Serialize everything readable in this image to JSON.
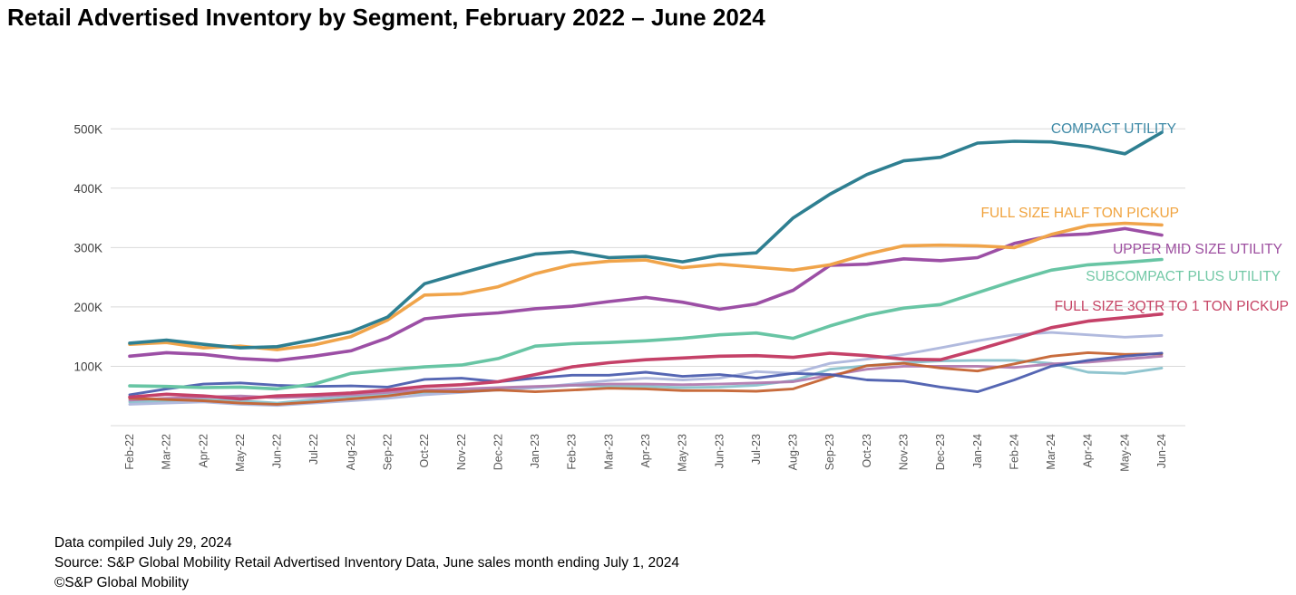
{
  "title": "Retail Advertised Inventory by Segment, February 2022 – June 2024",
  "footer": {
    "compiled": "Data compiled July 29, 2024",
    "source": "Source: S&P Global Mobility Retail Advertised Inventory Data, June sales month ending July 1, 2024",
    "copyright": "©S&P Global Mobility"
  },
  "chart_data": {
    "type": "line",
    "title": "Retail Advertised Inventory by Segment, February 2022 – June 2024",
    "x": [
      "Feb-22",
      "Mar-22",
      "Apr-22",
      "May-22",
      "Jun-22",
      "Jul-22",
      "Aug-22",
      "Sep-22",
      "Oct-22",
      "Nov-22",
      "Dec-22",
      "Jan-23",
      "Feb-23",
      "Mar-23",
      "Apr-23",
      "May-23",
      "Jun-23",
      "Jul-23",
      "Aug-23",
      "Sep-23",
      "Oct-23",
      "Nov-23",
      "Dec-23",
      "Jan-24",
      "Feb-24",
      "Mar-24",
      "Apr-24",
      "May-24",
      "Jun-24"
    ],
    "y_unit": "thousands of units",
    "y_ticks": [
      {
        "value": 100,
        "label": "100K"
      },
      {
        "value": 200,
        "label": "200K"
      },
      {
        "value": 300,
        "label": "300K"
      },
      {
        "value": 400,
        "label": "400K"
      },
      {
        "value": 500,
        "label": "500K"
      }
    ],
    "ylim": [
      0,
      530
    ],
    "grid": "horizontal",
    "legend_position": "inline-right",
    "series": [
      {
        "name": "COMPACT UTILITY",
        "color": "#2E7F91",
        "label_color": "#3D89A6",
        "values": [
          139,
          144,
          137,
          131,
          133,
          145,
          158,
          183,
          239,
          257,
          274,
          289,
          293,
          283,
          285,
          276,
          287,
          291,
          350,
          390,
          423,
          446,
          452,
          476,
          479,
          478,
          470,
          458,
          494
        ]
      },
      {
        "name": "FULL SIZE HALF TON PICKUP",
        "color": "#F0A44A",
        "label_color": "#F0A33E",
        "values": [
          137,
          140,
          131,
          134,
          128,
          136,
          150,
          178,
          220,
          222,
          234,
          256,
          271,
          277,
          279,
          266,
          272,
          267,
          262,
          271,
          289,
          303,
          304,
          303,
          300,
          322,
          337,
          341,
          338
        ]
      },
      {
        "name": "UPPER MID SIZE UTILITY",
        "color": "#9C4FA5",
        "label_color": "#9D4FA0",
        "values": [
          117,
          123,
          120,
          113,
          110,
          117,
          126,
          148,
          180,
          186,
          190,
          197,
          201,
          209,
          216,
          208,
          196,
          205,
          228,
          270,
          272,
          281,
          278,
          283,
          307,
          320,
          323,
          332,
          321
        ]
      },
      {
        "name": "SUBCOMPACT PLUS UTILITY",
        "color": "#68C5A4",
        "label_color": "#72C8A6",
        "values": [
          67,
          66,
          64,
          65,
          62,
          70,
          88,
          94,
          99,
          102,
          113,
          134,
          138,
          140,
          143,
          147,
          153,
          156,
          147,
          168,
          186,
          198,
          204,
          224,
          244,
          262,
          271,
          275,
          280
        ]
      },
      {
        "name": "FULL SIZE 3QTR TO 1 TON PICKUP",
        "color": "#C54168",
        "label_color": "#C64465",
        "values": [
          48,
          53,
          50,
          45,
          50,
          52,
          55,
          60,
          66,
          69,
          74,
          86,
          99,
          106,
          111,
          114,
          117,
          118,
          115,
          122,
          118,
          112,
          111,
          128,
          146,
          165,
          176,
          182,
          188
        ]
      },
      {
        "name": "",
        "color": "#4759AD",
        "values": [
          52,
          62,
          70,
          72,
          68,
          66,
          67,
          65,
          78,
          80,
          74,
          80,
          85,
          85,
          90,
          83,
          86,
          80,
          88,
          86,
          77,
          75,
          65,
          57,
          77,
          100,
          110,
          117,
          122
        ]
      },
      {
        "name": "",
        "color": "#C3602C",
        "values": [
          46,
          44,
          42,
          38,
          36,
          40,
          45,
          50,
          58,
          57,
          60,
          57,
          60,
          63,
          62,
          59,
          59,
          58,
          62,
          82,
          101,
          105,
          97,
          92,
          104,
          117,
          123,
          120,
          121
        ]
      },
      {
        "name": "",
        "color": "#B077AE",
        "values": [
          43,
          46,
          48,
          50,
          47,
          49,
          52,
          56,
          60,
          62,
          64,
          66,
          68,
          70,
          70,
          69,
          70,
          72,
          74,
          85,
          95,
          100,
          100,
          100,
          98,
          104,
          107,
          112,
          117
        ]
      },
      {
        "name": "",
        "color": "#AAB4DB",
        "values": [
          36,
          38,
          40,
          36,
          34,
          38,
          42,
          46,
          52,
          56,
          60,
          64,
          70,
          76,
          80,
          77,
          80,
          91,
          88,
          105,
          112,
          120,
          131,
          143,
          153,
          157,
          153,
          149,
          152
        ]
      },
      {
        "name": "",
        "color": "#87C0CB",
        "values": [
          40,
          42,
          44,
          42,
          38,
          44,
          48,
          52,
          56,
          58,
          62,
          64,
          68,
          66,
          66,
          64,
          65,
          68,
          76,
          95,
          101,
          106,
          109,
          110,
          110,
          105,
          90,
          88,
          97
        ]
      }
    ]
  }
}
